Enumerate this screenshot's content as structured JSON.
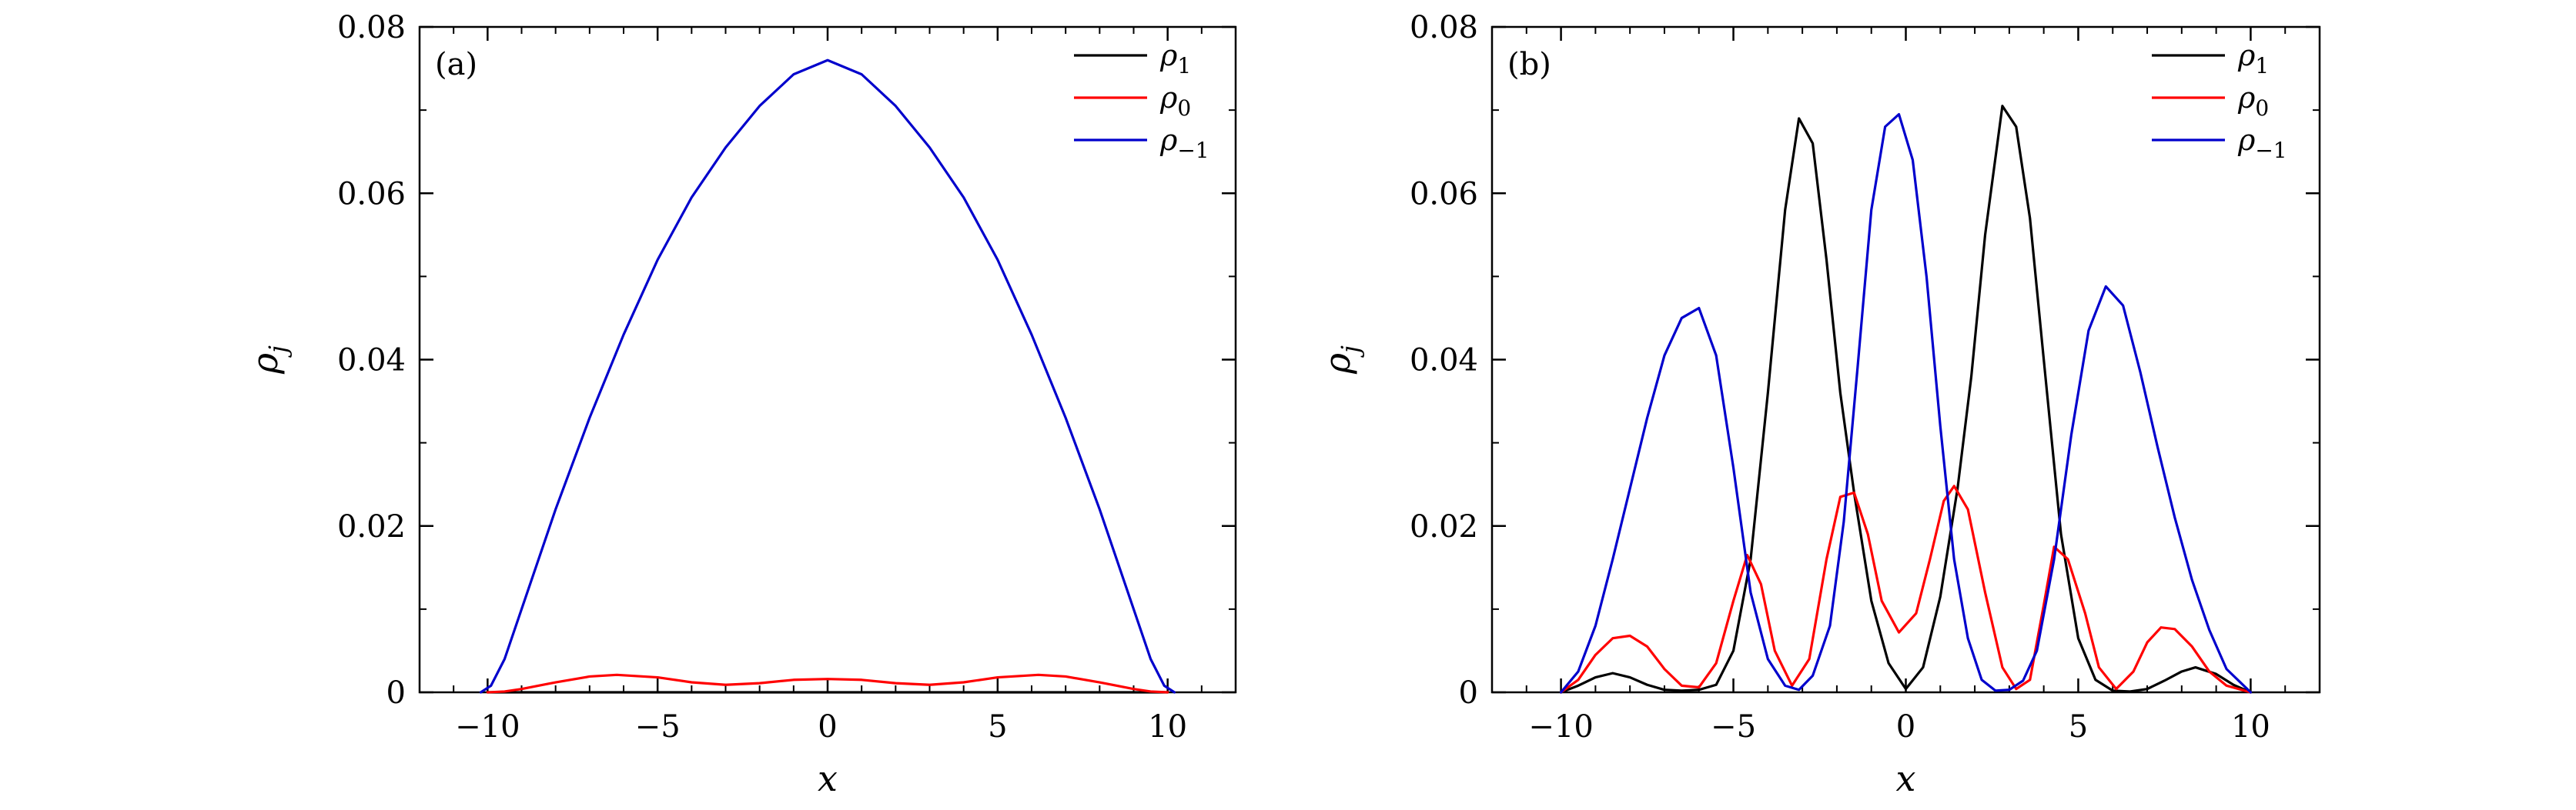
{
  "chart_data": [
    {
      "type": "line",
      "panel_label": "(a)",
      "xlabel": "x",
      "ylabel": "ρ_j",
      "ylabel_main": "ρ",
      "ylabel_sub": "j",
      "xlim": [
        -12,
        12
      ],
      "ylim": [
        0,
        0.08
      ],
      "xticks": [
        -10,
        -5,
        0,
        5,
        10
      ],
      "xtick_labels": [
        "−10",
        "−5",
        "0",
        "5",
        "10"
      ],
      "yticks": [
        0,
        0.02,
        0.04,
        0.06,
        0.08
      ],
      "ytick_labels": [
        "0",
        "0.02",
        "0.04",
        "0.06",
        "0.08"
      ],
      "legend_position": "top-right",
      "series": [
        {
          "name": "ρ1",
          "label_main": "ρ",
          "label_sub": "1",
          "color": "#000000",
          "x": [
            -10,
            -5,
            0,
            5,
            10
          ],
          "y": [
            0,
            0,
            0,
            0,
            0
          ]
        },
        {
          "name": "ρ0",
          "label_main": "ρ",
          "label_sub": "0",
          "color": "#ff0000",
          "x": [
            -10,
            -9.5,
            -9,
            -8,
            -7,
            -6.2,
            -5,
            -4,
            -3,
            -2,
            -1,
            0,
            1,
            2,
            3,
            4,
            5,
            6.2,
            7,
            8,
            9,
            9.5,
            10
          ],
          "y": [
            0,
            0.0001,
            0.0004,
            0.0012,
            0.0019,
            0.0021,
            0.0018,
            0.0012,
            0.0009,
            0.0011,
            0.0015,
            0.0016,
            0.0015,
            0.0011,
            0.0009,
            0.0012,
            0.0018,
            0.0021,
            0.0019,
            0.0012,
            0.0004,
            0.0001,
            0
          ]
        },
        {
          "name": "ρ-1",
          "label_main": "ρ",
          "label_sub": "−1",
          "color": "#0000cc",
          "x": [
            -10.2,
            -9.9,
            -9.5,
            -9,
            -8,
            -7,
            -6,
            -5,
            -4,
            -3,
            -2,
            -1,
            0,
            1,
            2,
            3,
            4,
            5,
            6,
            7,
            8,
            9,
            9.5,
            9.9,
            10.2
          ],
          "y": [
            0,
            0.0008,
            0.004,
            0.01,
            0.022,
            0.033,
            0.043,
            0.052,
            0.0595,
            0.0655,
            0.0705,
            0.0743,
            0.076,
            0.0743,
            0.0705,
            0.0655,
            0.0595,
            0.052,
            0.043,
            0.033,
            0.022,
            0.01,
            0.004,
            0.0008,
            0
          ]
        }
      ]
    },
    {
      "type": "line",
      "panel_label": "(b)",
      "xlabel": "x",
      "ylabel": "ρ_j",
      "ylabel_main": "ρ",
      "ylabel_sub": "j",
      "xlim": [
        -12,
        12
      ],
      "ylim": [
        0,
        0.08
      ],
      "xticks": [
        -10,
        -5,
        0,
        5,
        10
      ],
      "xtick_labels": [
        "−10",
        "−5",
        "0",
        "5",
        "10"
      ],
      "yticks": [
        0,
        0.02,
        0.04,
        0.06,
        0.08
      ],
      "ytick_labels": [
        "0",
        "0.02",
        "0.04",
        "0.06",
        "0.08"
      ],
      "legend_position": "top-right",
      "series": [
        {
          "name": "ρ1",
          "label_main": "ρ",
          "label_sub": "1",
          "color": "#000000",
          "x": [
            -10,
            -9.5,
            -9,
            -8.5,
            -8,
            -7.5,
            -7,
            -6.5,
            -6,
            -5.5,
            -5,
            -4.5,
            -4,
            -3.5,
            -3.1,
            -2.7,
            -2.3,
            -1.9,
            -1.5,
            -1,
            -0.5,
            0,
            0.5,
            1,
            1.5,
            1.9,
            2.3,
            2.8,
            3.2,
            3.6,
            4,
            4.5,
            5,
            5.5,
            6,
            6.5,
            7,
            7.5,
            8,
            8.4,
            9,
            9.5,
            10
          ],
          "y": [
            0,
            0.0008,
            0.0018,
            0.0023,
            0.0018,
            0.0009,
            0.0003,
            0.0002,
            0.0003,
            0.0009,
            0.005,
            0.016,
            0.036,
            0.058,
            0.069,
            0.066,
            0.052,
            0.036,
            0.024,
            0.011,
            0.0035,
            0.0004,
            0.003,
            0.0115,
            0.0245,
            0.038,
            0.055,
            0.0705,
            0.068,
            0.057,
            0.04,
            0.019,
            0.0065,
            0.0015,
            0.0002,
            0.0001,
            0.0004,
            0.0014,
            0.0025,
            0.003,
            0.0022,
            0.0009,
            0
          ]
        },
        {
          "name": "ρ0",
          "label_main": "ρ",
          "label_sub": "0",
          "color": "#ff0000",
          "x": [
            -10,
            -9.5,
            -9,
            -8.5,
            -8,
            -7.5,
            -7,
            -6.5,
            -6,
            -5.5,
            -5,
            -4.6,
            -4.2,
            -3.8,
            -3.3,
            -2.8,
            -2.3,
            -1.9,
            -1.5,
            -1.1,
            -0.7,
            -0.2,
            0.3,
            0.7,
            1.1,
            1.4,
            1.8,
            2.3,
            2.8,
            3.2,
            3.6,
            4,
            4.3,
            4.7,
            5.2,
            5.6,
            6.1,
            6.6,
            7,
            7.4,
            7.8,
            8.3,
            8.8,
            9.3,
            10
          ],
          "y": [
            0,
            0.0015,
            0.0045,
            0.0065,
            0.0068,
            0.0055,
            0.0028,
            0.0008,
            0.0006,
            0.0035,
            0.011,
            0.0165,
            0.013,
            0.005,
            0.0008,
            0.004,
            0.016,
            0.0235,
            0.024,
            0.019,
            0.011,
            0.0072,
            0.0095,
            0.016,
            0.023,
            0.0248,
            0.022,
            0.012,
            0.003,
            0.0004,
            0.0015,
            0.0105,
            0.0175,
            0.016,
            0.0095,
            0.003,
            0.0004,
            0.0025,
            0.006,
            0.0078,
            0.0076,
            0.0055,
            0.0025,
            0.0008,
            0
          ]
        },
        {
          "name": "ρ-1",
          "label_main": "ρ",
          "label_sub": "−1",
          "color": "#0000cc",
          "x": [
            -10,
            -9.5,
            -9,
            -8.5,
            -8,
            -7.5,
            -7,
            -6.5,
            -6,
            -5.5,
            -5,
            -4.5,
            -4,
            -3.5,
            -3.1,
            -2.7,
            -2.2,
            -1.8,
            -1.4,
            -1,
            -0.6,
            -0.2,
            0.2,
            0.6,
            1,
            1.4,
            1.8,
            2.2,
            2.6,
            3,
            3.4,
            3.8,
            4.3,
            4.8,
            5.3,
            5.8,
            6.3,
            6.8,
            7.3,
            7.8,
            8.3,
            8.8,
            9.3,
            10
          ],
          "y": [
            0,
            0.0025,
            0.008,
            0.016,
            0.0245,
            0.033,
            0.0405,
            0.045,
            0.0462,
            0.0405,
            0.027,
            0.012,
            0.004,
            0.0008,
            0.0003,
            0.002,
            0.008,
            0.0205,
            0.039,
            0.058,
            0.068,
            0.0695,
            0.064,
            0.05,
            0.032,
            0.016,
            0.0065,
            0.0015,
            0.0002,
            0.0003,
            0.0014,
            0.005,
            0.016,
            0.031,
            0.0435,
            0.0488,
            0.0465,
            0.0385,
            0.0295,
            0.021,
            0.0135,
            0.0075,
            0.0028,
            0
          ]
        }
      ]
    }
  ]
}
